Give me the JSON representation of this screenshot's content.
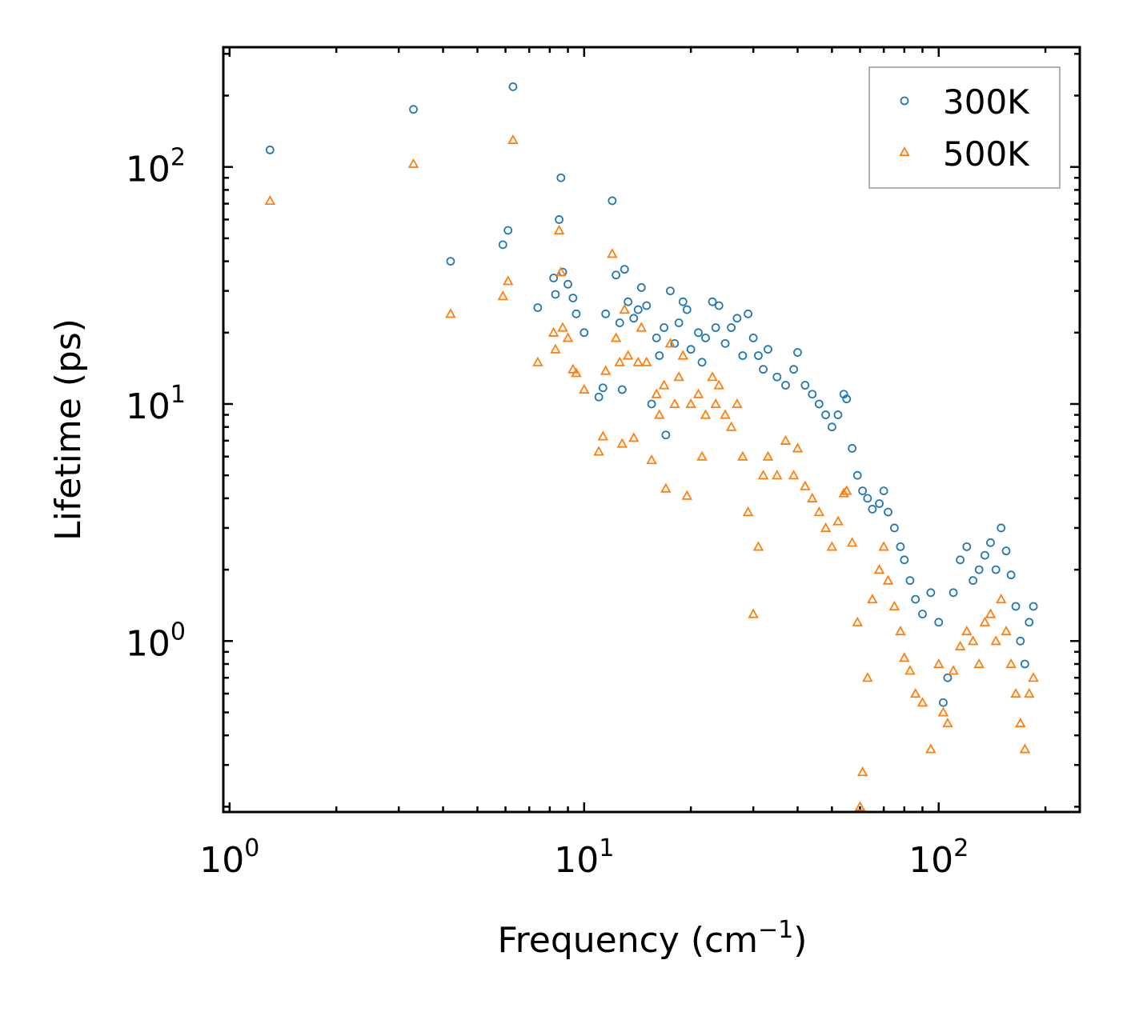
{
  "chart_data": {
    "type": "scatter",
    "title": "",
    "xlabel": "Frequency (cm",
    "xlabel_sup": "−1",
    "xlabel_end": ")",
    "ylabel": "Lifetime (ps)",
    "xscale": "log",
    "yscale": "log",
    "xlim": [
      0.96,
      250
    ],
    "ylim": [
      0.19,
      320
    ],
    "x_ticks": [
      {
        "base": "10",
        "exp": "0",
        "value": 1
      },
      {
        "base": "10",
        "exp": "1",
        "value": 10
      },
      {
        "base": "10",
        "exp": "2",
        "value": 100
      }
    ],
    "y_ticks": [
      {
        "base": "10",
        "exp": "0",
        "value": 1
      },
      {
        "base": "10",
        "exp": "1",
        "value": 10
      },
      {
        "base": "10",
        "exp": "2",
        "value": 100
      }
    ],
    "legend_position": "top-right",
    "series": [
      {
        "name": "300K",
        "marker": "circle",
        "color": "#1f77b4",
        "points": [
          [
            1.3,
            118
          ],
          [
            3.3,
            175
          ],
          [
            4.2,
            40
          ],
          [
            5.9,
            47
          ],
          [
            6.1,
            54
          ],
          [
            6.3,
            218
          ],
          [
            7.4,
            25.5
          ],
          [
            8.2,
            34
          ],
          [
            8.3,
            29
          ],
          [
            8.5,
            60
          ],
          [
            8.6,
            90
          ],
          [
            8.7,
            36
          ],
          [
            9.0,
            32
          ],
          [
            9.3,
            28
          ],
          [
            9.5,
            24
          ],
          [
            10.0,
            20
          ],
          [
            11.0,
            10.7
          ],
          [
            11.3,
            11.7
          ],
          [
            11.5,
            24
          ],
          [
            12.0,
            72
          ],
          [
            12.3,
            35
          ],
          [
            12.6,
            22
          ],
          [
            12.8,
            11.5
          ],
          [
            13.0,
            37
          ],
          [
            13.3,
            27
          ],
          [
            13.8,
            23
          ],
          [
            14.2,
            25
          ],
          [
            14.5,
            31
          ],
          [
            15.0,
            26
          ],
          [
            15.5,
            10
          ],
          [
            16.0,
            19
          ],
          [
            16.3,
            16
          ],
          [
            16.8,
            21
          ],
          [
            17.0,
            7.4
          ],
          [
            17.5,
            30
          ],
          [
            18.0,
            18
          ],
          [
            18.5,
            22
          ],
          [
            19.0,
            27
          ],
          [
            19.5,
            25
          ],
          [
            20.0,
            17
          ],
          [
            21.0,
            20
          ],
          [
            21.5,
            15
          ],
          [
            22.0,
            19
          ],
          [
            23.0,
            27
          ],
          [
            23.5,
            21
          ],
          [
            24.0,
            26
          ],
          [
            25.0,
            18
          ],
          [
            26.0,
            21
          ],
          [
            27.0,
            23
          ],
          [
            28.0,
            16
          ],
          [
            29.0,
            24
          ],
          [
            30.0,
            19
          ],
          [
            31.0,
            16
          ],
          [
            32.0,
            14
          ],
          [
            33.0,
            17
          ],
          [
            35.0,
            13
          ],
          [
            37.0,
            12
          ],
          [
            39.0,
            14
          ],
          [
            40.0,
            16.5
          ],
          [
            42.0,
            12
          ],
          [
            44.0,
            11
          ],
          [
            46.0,
            10
          ],
          [
            48.0,
            9
          ],
          [
            50.0,
            8
          ],
          [
            52.0,
            9
          ],
          [
            54.0,
            11
          ],
          [
            55.0,
            10.5
          ],
          [
            57.0,
            6.5
          ],
          [
            59.0,
            5
          ],
          [
            61.0,
            4.3
          ],
          [
            63.0,
            4
          ],
          [
            65.0,
            3.6
          ],
          [
            68.0,
            3.8
          ],
          [
            70.0,
            4.3
          ],
          [
            72.0,
            3.5
          ],
          [
            75.0,
            3.0
          ],
          [
            78.0,
            2.5
          ],
          [
            80.0,
            2.2
          ],
          [
            83.0,
            1.8
          ],
          [
            86.0,
            1.5
          ],
          [
            90.0,
            1.3
          ],
          [
            95.0,
            1.6
          ],
          [
            100.0,
            1.2
          ],
          [
            103.0,
            0.55
          ],
          [
            106.0,
            0.7
          ],
          [
            110.0,
            1.6
          ],
          [
            115.0,
            2.2
          ],
          [
            120.0,
            2.5
          ],
          [
            125.0,
            1.8
          ],
          [
            130.0,
            2.0
          ],
          [
            135.0,
            2.3
          ],
          [
            140.0,
            2.6
          ],
          [
            145.0,
            2.0
          ],
          [
            150.0,
            3.0
          ],
          [
            155.0,
            2.4
          ],
          [
            160.0,
            1.9
          ],
          [
            165.0,
            1.4
          ],
          [
            170.0,
            1.0
          ],
          [
            175.0,
            0.8
          ],
          [
            180.0,
            1.2
          ],
          [
            185.0,
            1.4
          ]
        ]
      },
      {
        "name": "500K",
        "marker": "triangle",
        "color": "#ff7f0e",
        "points": [
          [
            1.3,
            72
          ],
          [
            3.3,
            103
          ],
          [
            4.2,
            24
          ],
          [
            5.9,
            28.5
          ],
          [
            6.1,
            33
          ],
          [
            6.3,
            130
          ],
          [
            7.4,
            15
          ],
          [
            8.2,
            20
          ],
          [
            8.3,
            17
          ],
          [
            8.5,
            54
          ],
          [
            8.6,
            36
          ],
          [
            8.7,
            21
          ],
          [
            9.0,
            19
          ],
          [
            9.3,
            14
          ],
          [
            9.5,
            13.5
          ],
          [
            10.0,
            11.5
          ],
          [
            11.0,
            6.3
          ],
          [
            11.3,
            7.3
          ],
          [
            11.5,
            13.8
          ],
          [
            12.0,
            43
          ],
          [
            12.3,
            19
          ],
          [
            12.6,
            15
          ],
          [
            12.8,
            6.8
          ],
          [
            13.0,
            25
          ],
          [
            13.3,
            16
          ],
          [
            13.8,
            7.2
          ],
          [
            14.2,
            15
          ],
          [
            14.5,
            21
          ],
          [
            15.0,
            15
          ],
          [
            15.5,
            5.8
          ],
          [
            16.0,
            11
          ],
          [
            16.3,
            9
          ],
          [
            16.8,
            12
          ],
          [
            17.0,
            4.4
          ],
          [
            17.5,
            18
          ],
          [
            18.0,
            10
          ],
          [
            18.5,
            13
          ],
          [
            19.0,
            16
          ],
          [
            19.5,
            4.1
          ],
          [
            20.0,
            10
          ],
          [
            21.0,
            11
          ],
          [
            21.5,
            6
          ],
          [
            22.0,
            9
          ],
          [
            23.0,
            13
          ],
          [
            23.5,
            10
          ],
          [
            24.0,
            12
          ],
          [
            25.0,
            9
          ],
          [
            26.0,
            8
          ],
          [
            27.0,
            10
          ],
          [
            28.0,
            6
          ],
          [
            29.0,
            3.5
          ],
          [
            30.0,
            1.3
          ],
          [
            31.0,
            2.5
          ],
          [
            32.0,
            5
          ],
          [
            33.0,
            6
          ],
          [
            35.0,
            5
          ],
          [
            37.0,
            7
          ],
          [
            39.0,
            5
          ],
          [
            40.0,
            6.5
          ],
          [
            42.0,
            4.5
          ],
          [
            44.0,
            4
          ],
          [
            46.0,
            3.5
          ],
          [
            48.0,
            3
          ],
          [
            50.0,
            2.5
          ],
          [
            52.0,
            3.2
          ],
          [
            54.0,
            4.2
          ],
          [
            55.0,
            4.3
          ],
          [
            57.0,
            2.6
          ],
          [
            59.0,
            1.2
          ],
          [
            60.0,
            0.2
          ],
          [
            61.0,
            0.28
          ],
          [
            63.0,
            0.7
          ],
          [
            65.0,
            1.5
          ],
          [
            68.0,
            2.0
          ],
          [
            70.0,
            2.5
          ],
          [
            72.0,
            1.8
          ],
          [
            75.0,
            1.4
          ],
          [
            78.0,
            1.1
          ],
          [
            80.0,
            0.85
          ],
          [
            83.0,
            0.75
          ],
          [
            86.0,
            0.6
          ],
          [
            90.0,
            0.55
          ],
          [
            95.0,
            0.35
          ],
          [
            100.0,
            0.8
          ],
          [
            103.0,
            0.5
          ],
          [
            106.0,
            0.45
          ],
          [
            110.0,
            0.75
          ],
          [
            115.0,
            0.95
          ],
          [
            120.0,
            1.1
          ],
          [
            125.0,
            1.0
          ],
          [
            130.0,
            0.8
          ],
          [
            135.0,
            1.2
          ],
          [
            140.0,
            1.3
          ],
          [
            145.0,
            1.0
          ],
          [
            150.0,
            1.5
          ],
          [
            155.0,
            1.1
          ],
          [
            160.0,
            0.8
          ],
          [
            165.0,
            0.6
          ],
          [
            170.0,
            0.45
          ],
          [
            175.0,
            0.35
          ],
          [
            180.0,
            0.6
          ],
          [
            185.0,
            0.7
          ]
        ]
      }
    ]
  }
}
